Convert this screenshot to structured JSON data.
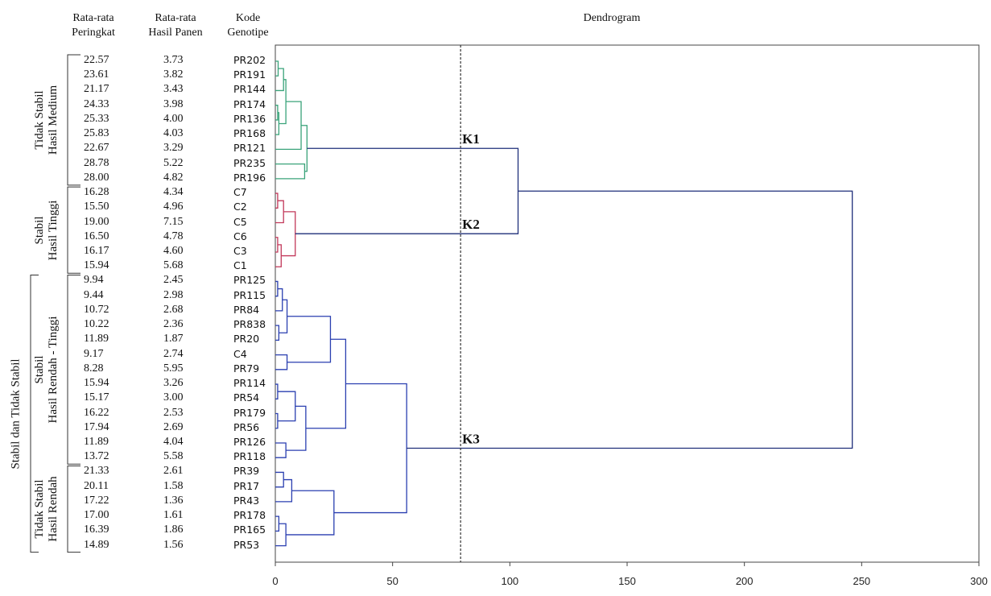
{
  "headers": {
    "rank": [
      "Rata-rata",
      "Peringkat"
    ],
    "yield": [
      "Rata-rata",
      "Hasil Panen"
    ],
    "code": [
      "Kode",
      "Genotipe"
    ],
    "dendrogram": "Dendrogram"
  },
  "rows": [
    {
      "rank": "22.57",
      "yield": "3.73",
      "code": "PR202"
    },
    {
      "rank": "23.61",
      "yield": "3.82",
      "code": "PR191"
    },
    {
      "rank": "21.17",
      "yield": "3.43",
      "code": "PR144"
    },
    {
      "rank": "24.33",
      "yield": "3.98",
      "code": "PR174"
    },
    {
      "rank": "25.33",
      "yield": "4.00",
      "code": "PR136"
    },
    {
      "rank": "25.83",
      "yield": "4.03",
      "code": "PR168"
    },
    {
      "rank": "22.67",
      "yield": "3.29",
      "code": "PR121"
    },
    {
      "rank": "28.78",
      "yield": "5.22",
      "code": "PR235"
    },
    {
      "rank": "28.00",
      "yield": "4.82",
      "code": "PR196"
    },
    {
      "rank": "16.28",
      "yield": "4.34",
      "code": "C7"
    },
    {
      "rank": "15.50",
      "yield": "4.96",
      "code": "C2"
    },
    {
      "rank": "19.00",
      "yield": "7.15",
      "code": "C5"
    },
    {
      "rank": "16.50",
      "yield": "4.78",
      "code": "C6"
    },
    {
      "rank": "16.17",
      "yield": "4.60",
      "code": "C3"
    },
    {
      "rank": "15.94",
      "yield": "5.68",
      "code": "C1"
    },
    {
      "rank": "9.94",
      "yield": "2.45",
      "code": "PR125"
    },
    {
      "rank": "9.44",
      "yield": "2.98",
      "code": "PR115"
    },
    {
      "rank": "10.72",
      "yield": "2.68",
      "code": "PR84"
    },
    {
      "rank": "10.22",
      "yield": "2.36",
      "code": "PR838"
    },
    {
      "rank": "11.89",
      "yield": "1.87",
      "code": "PR20"
    },
    {
      "rank": "9.17",
      "yield": "2.74",
      "code": "C4"
    },
    {
      "rank": "8.28",
      "yield": "5.95",
      "code": "PR79"
    },
    {
      "rank": "15.94",
      "yield": "3.26",
      "code": "PR114"
    },
    {
      "rank": "15.17",
      "yield": "3.00",
      "code": "PR54"
    },
    {
      "rank": "16.22",
      "yield": "2.53",
      "code": "PR179"
    },
    {
      "rank": "17.94",
      "yield": "2.69",
      "code": "PR56"
    },
    {
      "rank": "11.89",
      "yield": "4.04",
      "code": "PR126"
    },
    {
      "rank": "13.72",
      "yield": "5.58",
      "code": "PR118"
    },
    {
      "rank": "21.33",
      "yield": "2.61",
      "code": "PR39"
    },
    {
      "rank": "20.11",
      "yield": "1.58",
      "code": "PR17"
    },
    {
      "rank": "17.22",
      "yield": "1.36",
      "code": "PR43"
    },
    {
      "rank": "17.00",
      "yield": "1.61",
      "code": "PR178"
    },
    {
      "rank": "16.39",
      "yield": "1.86",
      "code": "PR165"
    },
    {
      "rank": "14.89",
      "yield": "1.56",
      "code": "PR53"
    }
  ],
  "groups": [
    {
      "lines": [
        "Tidak Stabil",
        "Hasil Medium"
      ],
      "first": 0,
      "last": 8
    },
    {
      "lines": [
        "Stabil",
        "Hasil Tinggi"
      ],
      "first": 9,
      "last": 14
    },
    {
      "lines": [
        "Stabil",
        "Hasil Rendah - Tinggi"
      ],
      "first": 15,
      "last": 27
    },
    {
      "lines": [
        "Tidak Stabil",
        "Hasil Rendah"
      ],
      "first": 28,
      "last": 33
    }
  ],
  "outer_group": {
    "label": "Stabil dan Tidak Stabil",
    "first": 15,
    "last": 33
  },
  "chart_data": {
    "type": "dendrogram",
    "xlim": [
      0,
      300
    ],
    "xticks": [
      0,
      50,
      100,
      150,
      200,
      250,
      300
    ],
    "cut_height": 79,
    "colors": {
      "K1": "#3aa37a",
      "K2": "#c2385a",
      "K3": "#2a3fb0",
      "root": "#1f2f7a"
    },
    "clusters": [
      {
        "name": "K1",
        "first": 0,
        "last": 8
      },
      {
        "name": "K2",
        "first": 9,
        "last": 14
      },
      {
        "name": "K3",
        "first": 15,
        "last": 33
      }
    ],
    "merges": [
      {
        "a": "L0",
        "b": "L1",
        "h": 1.2,
        "id": "a1",
        "c": "K1"
      },
      {
        "a": "a1",
        "b": "L2",
        "h": 3.5,
        "id": "a2",
        "c": "K1"
      },
      {
        "a": "L3",
        "b": "L4",
        "h": 1.0,
        "id": "a3",
        "c": "K1"
      },
      {
        "a": "a3",
        "b": "L5",
        "h": 1.5,
        "id": "a4",
        "c": "K1"
      },
      {
        "a": "a2",
        "b": "a4",
        "h": 4.5,
        "id": "a5",
        "c": "K1"
      },
      {
        "a": "a5",
        "b": "L6",
        "h": 11.0,
        "id": "a6",
        "c": "K1"
      },
      {
        "a": "L7",
        "b": "L8",
        "h": 12.5,
        "id": "a7",
        "c": "K1"
      },
      {
        "a": "a6",
        "b": "a7",
        "h": 13.5,
        "id": "A",
        "c": "K1"
      },
      {
        "a": "L9",
        "b": "L10",
        "h": 1.0,
        "id": "b1",
        "c": "K2"
      },
      {
        "a": "b1",
        "b": "L11",
        "h": 3.5,
        "id": "b2",
        "c": "K2"
      },
      {
        "a": "L12",
        "b": "L13",
        "h": 1.0,
        "id": "b3",
        "c": "K2"
      },
      {
        "a": "b3",
        "b": "L14",
        "h": 2.5,
        "id": "b4",
        "c": "K2"
      },
      {
        "a": "b2",
        "b": "b4",
        "h": 8.5,
        "id": "B",
        "c": "K2"
      },
      {
        "a": "L15",
        "b": "L16",
        "h": 1.0,
        "id": "c1",
        "c": "K3"
      },
      {
        "a": "c1",
        "b": "L17",
        "h": 3.0,
        "id": "c2",
        "c": "K3"
      },
      {
        "a": "L18",
        "b": "L19",
        "h": 1.5,
        "id": "c3",
        "c": "K3"
      },
      {
        "a": "c2",
        "b": "c3",
        "h": 5.0,
        "id": "c4",
        "c": "K3"
      },
      {
        "a": "c4",
        "b": "d1",
        "h": 23.5,
        "id": "c5",
        "c": "K3"
      },
      {
        "a": "L20",
        "b": "L21",
        "h": 5.0,
        "id": "d1",
        "c": "K3"
      },
      {
        "a": "L22",
        "b": "L23",
        "h": 1.0,
        "id": "e1",
        "c": "K3"
      },
      {
        "a": "e1",
        "b": "e2",
        "h": 8.5,
        "id": "e3",
        "c": "K3"
      },
      {
        "a": "L24",
        "b": "L25",
        "h": 1.0,
        "id": "e2",
        "c": "K3"
      },
      {
        "a": "L26",
        "b": "L27",
        "h": 4.5,
        "id": "e4",
        "c": "K3"
      },
      {
        "a": "e3",
        "b": "e4",
        "h": 13.0,
        "id": "e5",
        "c": "K3"
      },
      {
        "a": "c5",
        "b": "e5",
        "h": 30.0,
        "id": "E",
        "c": "K3"
      },
      {
        "a": "L28",
        "b": "L29",
        "h": 3.5,
        "id": "f1",
        "c": "K3"
      },
      {
        "a": "f1",
        "b": "L30",
        "h": 7.0,
        "id": "f2",
        "c": "K3"
      },
      {
        "a": "L31",
        "b": "L32",
        "h": 1.5,
        "id": "f3",
        "c": "K3"
      },
      {
        "a": "f3",
        "b": "L33",
        "h": 4.5,
        "id": "f4",
        "c": "K3"
      },
      {
        "a": "f2",
        "b": "f4",
        "h": 25.0,
        "id": "F",
        "c": "K3"
      },
      {
        "a": "E",
        "b": "F",
        "h": 56.0,
        "id": "C",
        "c": "K3"
      },
      {
        "a": "A",
        "b": "B",
        "h": 103.5,
        "id": "AB",
        "c": "root"
      },
      {
        "a": "AB",
        "b": "C",
        "h": 246.0,
        "id": "ROOT",
        "c": "root"
      }
    ]
  }
}
